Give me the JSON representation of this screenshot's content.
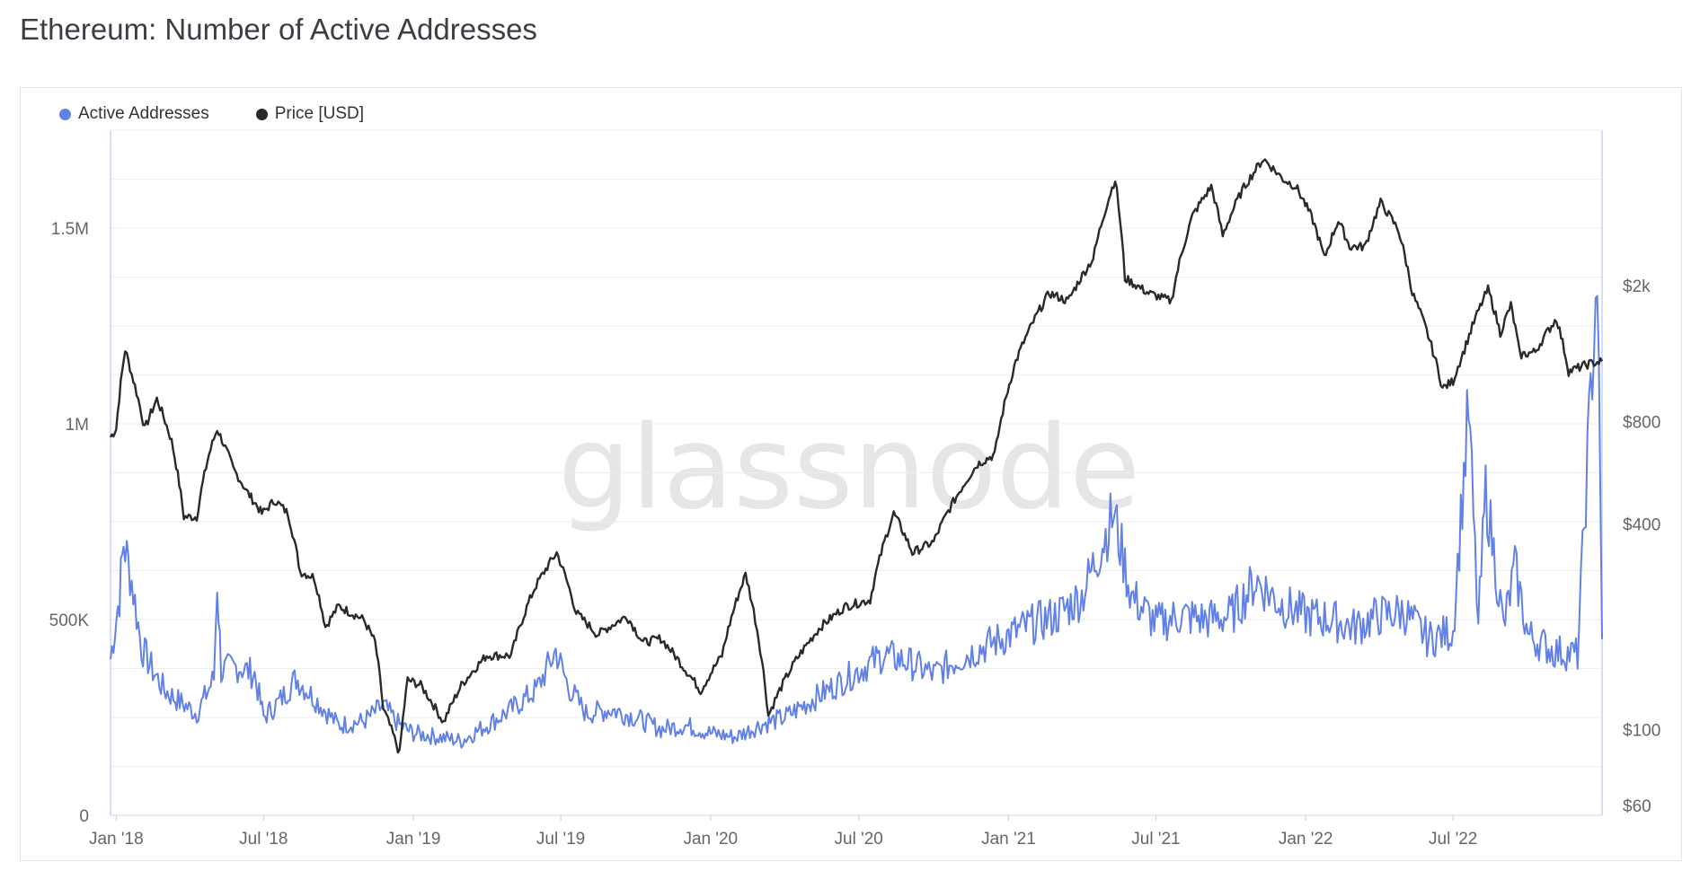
{
  "page": {
    "title": "Ethereum: Number of Active Addresses"
  },
  "watermark": "glassnode",
  "legend": {
    "items": [
      {
        "label": "Active Addresses",
        "color": "#6181e6"
      },
      {
        "label": "Price [USD]",
        "color": "#2a2a2a"
      }
    ]
  },
  "chart_data": {
    "type": "line",
    "title": "Ethereum: Number of Active Addresses",
    "x_ticks": [
      "Jan '18",
      "Jul '18",
      "Jan '19",
      "Jul '19",
      "Jan '20",
      "Jul '20",
      "Jan '21",
      "Jul '21",
      "Jan '22",
      "Jul '22"
    ],
    "xlim": [
      "2017-12-25",
      "2022-12-31"
    ],
    "y_left": {
      "ticks": [
        "0",
        "500K",
        "1M",
        "1.5M"
      ],
      "tick_values": [
        0,
        500000,
        1000000,
        1500000
      ],
      "ylim": [
        0,
        1750000
      ]
    },
    "y_right": {
      "scale": "log",
      "ticks": [
        "$60",
        "$100",
        "$400",
        "$800",
        "$2k"
      ],
      "tick_values": [
        60,
        100,
        400,
        800,
        2000
      ]
    },
    "grid": true,
    "legend_position": "top-left",
    "series": [
      {
        "name": "Active Addresses",
        "axis": "left",
        "color": "#6181e6",
        "points": [
          [
            "2017-12-25",
            400000
          ],
          [
            "2018-01-05",
            560000
          ],
          [
            "2018-01-10",
            700000
          ],
          [
            "2018-01-20",
            600000
          ],
          [
            "2018-02-01",
            430000
          ],
          [
            "2018-02-15",
            370000
          ],
          [
            "2018-03-01",
            320000
          ],
          [
            "2018-03-20",
            290000
          ],
          [
            "2018-04-10",
            260000
          ],
          [
            "2018-05-01",
            350000
          ],
          [
            "2018-05-05",
            600000
          ],
          [
            "2018-05-10",
            370000
          ],
          [
            "2018-06-01",
            380000
          ],
          [
            "2018-06-20",
            360000
          ],
          [
            "2018-07-01",
            250000
          ],
          [
            "2018-07-20",
            290000
          ],
          [
            "2018-08-10",
            350000
          ],
          [
            "2018-09-01",
            300000
          ],
          [
            "2018-10-01",
            230000
          ],
          [
            "2018-11-01",
            240000
          ],
          [
            "2018-11-25",
            280000
          ],
          [
            "2018-12-15",
            230000
          ],
          [
            "2019-01-01",
            210000
          ],
          [
            "2019-02-01",
            200000
          ],
          [
            "2019-03-01",
            190000
          ],
          [
            "2019-04-01",
            230000
          ],
          [
            "2019-05-01",
            270000
          ],
          [
            "2019-06-01",
            320000
          ],
          [
            "2019-06-25",
            420000
          ],
          [
            "2019-07-10",
            330000
          ],
          [
            "2019-08-01",
            260000
          ],
          [
            "2019-09-01",
            270000
          ],
          [
            "2019-10-01",
            250000
          ],
          [
            "2019-11-01",
            220000
          ],
          [
            "2019-12-01",
            230000
          ],
          [
            "2020-01-01",
            210000
          ],
          [
            "2020-02-01",
            200000
          ],
          [
            "2020-03-01",
            230000
          ],
          [
            "2020-04-01",
            250000
          ],
          [
            "2020-05-01",
            290000
          ],
          [
            "2020-06-01",
            330000
          ],
          [
            "2020-07-01",
            370000
          ],
          [
            "2020-08-01",
            410000
          ],
          [
            "2020-09-01",
            390000
          ],
          [
            "2020-10-01",
            360000
          ],
          [
            "2020-11-01",
            400000
          ],
          [
            "2020-12-01",
            430000
          ],
          [
            "2021-01-01",
            460000
          ],
          [
            "2021-02-01",
            490000
          ],
          [
            "2021-03-01",
            510000
          ],
          [
            "2021-04-01",
            560000
          ],
          [
            "2021-05-10",
            770000
          ],
          [
            "2021-06-01",
            560000
          ],
          [
            "2021-07-01",
            490000
          ],
          [
            "2021-08-01",
            510000
          ],
          [
            "2021-09-01",
            500000
          ],
          [
            "2021-10-01",
            510000
          ],
          [
            "2021-11-01",
            600000
          ],
          [
            "2021-12-01",
            540000
          ],
          [
            "2022-01-01",
            510000
          ],
          [
            "2022-02-01",
            500000
          ],
          [
            "2022-03-01",
            480000
          ],
          [
            "2022-04-01",
            510000
          ],
          [
            "2022-05-01",
            520000
          ],
          [
            "2022-06-01",
            450000
          ],
          [
            "2022-07-01",
            470000
          ],
          [
            "2022-07-20",
            1040000
          ],
          [
            "2022-08-01",
            480000
          ],
          [
            "2022-08-10",
            830000
          ],
          [
            "2022-09-01",
            480000
          ],
          [
            "2022-09-15",
            630000
          ],
          [
            "2022-10-01",
            460000
          ],
          [
            "2022-11-01",
            420000
          ],
          [
            "2022-12-01",
            410000
          ],
          [
            "2022-12-25",
            1400000
          ],
          [
            "2022-12-31",
            450000
          ]
        ]
      },
      {
        "name": "Price [USD]",
        "axis": "right",
        "color": "#2a2a2a",
        "points": [
          [
            "2017-12-25",
            720
          ],
          [
            "2018-01-01",
            760
          ],
          [
            "2018-01-12",
            1300
          ],
          [
            "2018-01-20",
            1100
          ],
          [
            "2018-02-05",
            760
          ],
          [
            "2018-02-20",
            930
          ],
          [
            "2018-03-10",
            700
          ],
          [
            "2018-03-25",
            420
          ],
          [
            "2018-04-10",
            420
          ],
          [
            "2018-04-25",
            640
          ],
          [
            "2018-05-05",
            760
          ],
          [
            "2018-05-25",
            580
          ],
          [
            "2018-06-10",
            500
          ],
          [
            "2018-06-29",
            430
          ],
          [
            "2018-07-15",
            470
          ],
          [
            "2018-07-31",
            430
          ],
          [
            "2018-08-15",
            290
          ],
          [
            "2018-09-01",
            280
          ],
          [
            "2018-09-15",
            200
          ],
          [
            "2018-10-01",
            230
          ],
          [
            "2018-11-01",
            210
          ],
          [
            "2018-11-15",
            180
          ],
          [
            "2018-11-25",
            115
          ],
          [
            "2018-12-15",
            85
          ],
          [
            "2018-12-25",
            140
          ],
          [
            "2019-01-10",
            135
          ],
          [
            "2019-02-07",
            105
          ],
          [
            "2019-03-01",
            135
          ],
          [
            "2019-04-01",
            165
          ],
          [
            "2019-05-01",
            165
          ],
          [
            "2019-05-30",
            260
          ],
          [
            "2019-06-26",
            330
          ],
          [
            "2019-07-20",
            220
          ],
          [
            "2019-08-15",
            190
          ],
          [
            "2019-09-20",
            215
          ],
          [
            "2019-10-10",
            180
          ],
          [
            "2019-11-01",
            185
          ],
          [
            "2019-12-01",
            150
          ],
          [
            "2019-12-20",
            130
          ],
          [
            "2020-01-15",
            165
          ],
          [
            "2020-02-13",
            285
          ],
          [
            "2020-03-12",
            110
          ],
          [
            "2020-04-15",
            160
          ],
          [
            "2020-05-15",
            200
          ],
          [
            "2020-06-15",
            230
          ],
          [
            "2020-07-15",
            240
          ],
          [
            "2020-08-13",
            430
          ],
          [
            "2020-09-05",
            330
          ],
          [
            "2020-10-01",
            355
          ],
          [
            "2020-11-24",
            600
          ],
          [
            "2020-12-15",
            640
          ],
          [
            "2021-01-10",
            1200
          ],
          [
            "2021-02-20",
            1900
          ],
          [
            "2021-03-15",
            1800
          ],
          [
            "2021-04-15",
            2400
          ],
          [
            "2021-05-12",
            4100
          ],
          [
            "2021-05-24",
            2100
          ],
          [
            "2021-06-22",
            1900
          ],
          [
            "2021-07-20",
            1800
          ],
          [
            "2021-08-15",
            3200
          ],
          [
            "2021-09-07",
            3900
          ],
          [
            "2021-09-21",
            2800
          ],
          [
            "2021-10-15",
            3800
          ],
          [
            "2021-11-10",
            4700
          ],
          [
            "2021-12-04",
            4100
          ],
          [
            "2021-12-20",
            3900
          ],
          [
            "2022-01-10",
            3100
          ],
          [
            "2022-01-24",
            2400
          ],
          [
            "2022-02-10",
            3100
          ],
          [
            "2022-02-24",
            2600
          ],
          [
            "2022-03-15",
            2600
          ],
          [
            "2022-04-03",
            3500
          ],
          [
            "2022-04-25",
            2900
          ],
          [
            "2022-05-12",
            1900
          ],
          [
            "2022-06-18",
            1000
          ],
          [
            "2022-07-01",
            1050
          ],
          [
            "2022-07-15",
            1300
          ],
          [
            "2022-08-13",
            1950
          ],
          [
            "2022-08-28",
            1450
          ],
          [
            "2022-09-10",
            1750
          ],
          [
            "2022-09-21",
            1250
          ],
          [
            "2022-10-10",
            1280
          ],
          [
            "2022-11-05",
            1600
          ],
          [
            "2022-11-20",
            1120
          ],
          [
            "2022-12-15",
            1180
          ],
          [
            "2022-12-31",
            1200
          ]
        ]
      }
    ]
  }
}
